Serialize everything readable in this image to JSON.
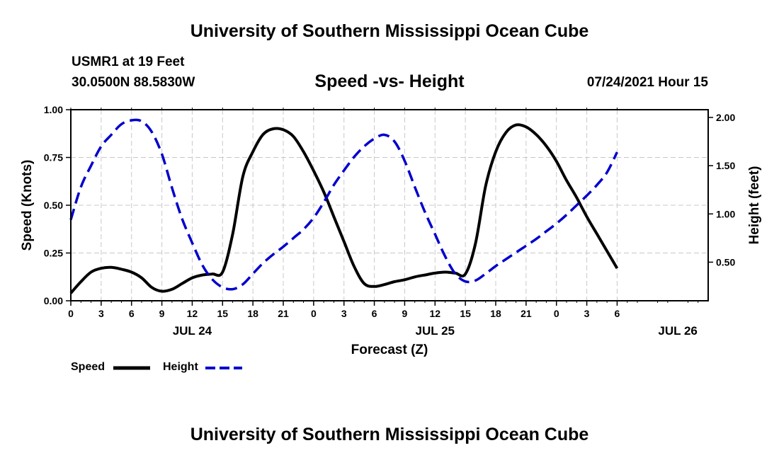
{
  "header": {
    "title": "University of Southern Mississippi Ocean Cube",
    "station": "USMR1 at 19 Feet",
    "coords": "30.0500N  88.5830W",
    "subtitle": "Speed -vs- Height",
    "datetime": "07/24/2021 Hour 15"
  },
  "footer": {
    "title": "University of Southern Mississippi Ocean Cube"
  },
  "legend": {
    "speed_label": "Speed",
    "height_label": "Height"
  },
  "chart_data": {
    "type": "line",
    "title": "Speed -vs- Height",
    "xlabel": "Forecast (Z)",
    "ylabel": "Speed (Knots)",
    "y2label": "Height (feet)",
    "x_hours_range": [
      0,
      63
    ],
    "ylim": [
      0,
      1.0
    ],
    "y2lim": [
      0.1,
      2.08
    ],
    "x_ticks": [
      {
        "h": 0,
        "label": "0"
      },
      {
        "h": 3,
        "label": "3"
      },
      {
        "h": 6,
        "label": "6"
      },
      {
        "h": 9,
        "label": "9"
      },
      {
        "h": 12,
        "label": "12"
      },
      {
        "h": 15,
        "label": "15"
      },
      {
        "h": 18,
        "label": "18"
      },
      {
        "h": 21,
        "label": "21"
      },
      {
        "h": 24,
        "label": "0"
      },
      {
        "h": 27,
        "label": "3"
      },
      {
        "h": 30,
        "label": "6"
      },
      {
        "h": 33,
        "label": "9"
      },
      {
        "h": 36,
        "label": "12"
      },
      {
        "h": 39,
        "label": "15"
      },
      {
        "h": 42,
        "label": "18"
      },
      {
        "h": 45,
        "label": "21"
      },
      {
        "h": 48,
        "label": "0"
      },
      {
        "h": 51,
        "label": "3"
      },
      {
        "h": 54,
        "label": "6"
      }
    ],
    "date_labels": [
      {
        "h": 12,
        "label": "JUL 24"
      },
      {
        "h": 36,
        "label": "JUL 25"
      },
      {
        "h": 60,
        "label": "JUL 26"
      }
    ],
    "y_ticks": [
      {
        "v": 0.0,
        "label": "0.00"
      },
      {
        "v": 0.25,
        "label": "0.25"
      },
      {
        "v": 0.5,
        "label": "0.50"
      },
      {
        "v": 0.75,
        "label": "0.75"
      },
      {
        "v": 1.0,
        "label": "1.00"
      }
    ],
    "y2_ticks": [
      {
        "v": 0.5,
        "label": "0.50"
      },
      {
        "v": 1.0,
        "label": "1.00"
      },
      {
        "v": 1.5,
        "label": "1.50"
      },
      {
        "v": 2.0,
        "label": "2.00"
      }
    ],
    "series": [
      {
        "name": "Speed",
        "axis": "left",
        "color": "#000000",
        "dash": "solid",
        "x": [
          0,
          1,
          2,
          3,
          4,
          5,
          6,
          7,
          8,
          9,
          10,
          11,
          12,
          13,
          14,
          15,
          16,
          17,
          18,
          19,
          20,
          21,
          22,
          23,
          24,
          25,
          26,
          27,
          28,
          29,
          30,
          31,
          32,
          33,
          34,
          35,
          36,
          37,
          38,
          39,
          40,
          41,
          42,
          43,
          44,
          45,
          46,
          47,
          48,
          49,
          50,
          51,
          52,
          53,
          54
        ],
        "values": [
          0.04,
          0.1,
          0.15,
          0.17,
          0.175,
          0.165,
          0.15,
          0.12,
          0.07,
          0.05,
          0.06,
          0.09,
          0.12,
          0.135,
          0.14,
          0.15,
          0.35,
          0.65,
          0.78,
          0.87,
          0.9,
          0.895,
          0.86,
          0.78,
          0.68,
          0.57,
          0.44,
          0.31,
          0.18,
          0.09,
          0.075,
          0.085,
          0.1,
          0.11,
          0.125,
          0.135,
          0.145,
          0.15,
          0.145,
          0.14,
          0.3,
          0.6,
          0.78,
          0.88,
          0.92,
          0.91,
          0.87,
          0.81,
          0.73,
          0.63,
          0.54,
          0.44,
          0.35,
          0.26,
          0.17
        ]
      },
      {
        "name": "Height",
        "axis": "right",
        "color": "#0000cc",
        "dash": "dashed",
        "x": [
          0,
          1,
          2,
          3,
          4,
          5,
          6,
          7,
          8,
          9,
          10,
          11,
          12,
          13,
          14,
          15,
          16,
          17,
          18,
          19,
          20,
          21,
          22,
          23,
          24,
          25,
          26,
          27,
          28,
          29,
          30,
          31,
          32,
          33,
          34,
          35,
          36,
          37,
          38,
          39,
          40,
          41,
          42,
          43,
          44,
          45,
          46,
          47,
          48,
          49,
          50,
          51,
          52,
          53,
          54
        ],
        "values": [
          0.94,
          1.28,
          1.5,
          1.7,
          1.82,
          1.93,
          1.97,
          1.96,
          1.85,
          1.62,
          1.27,
          0.95,
          0.7,
          0.47,
          0.32,
          0.24,
          0.22,
          0.27,
          0.38,
          0.49,
          0.58,
          0.66,
          0.75,
          0.84,
          0.96,
          1.12,
          1.3,
          1.45,
          1.59,
          1.7,
          1.78,
          1.82,
          1.75,
          1.55,
          1.28,
          1.02,
          0.79,
          0.56,
          0.38,
          0.3,
          0.31,
          0.38,
          0.46,
          0.53,
          0.6,
          0.67,
          0.74,
          0.82,
          0.9,
          0.99,
          1.09,
          1.19,
          1.3,
          1.43,
          1.64
        ]
      }
    ]
  }
}
